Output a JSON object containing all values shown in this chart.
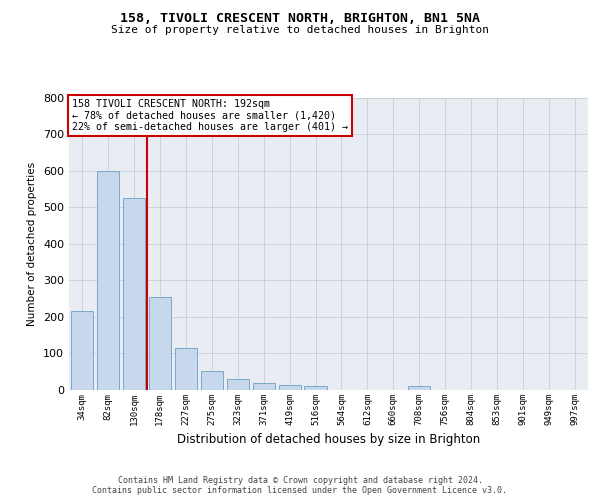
{
  "title1": "158, TIVOLI CRESCENT NORTH, BRIGHTON, BN1 5NA",
  "title2": "Size of property relative to detached houses in Brighton",
  "xlabel": "Distribution of detached houses by size in Brighton",
  "ylabel": "Number of detached properties",
  "categories": [
    "34sqm",
    "82sqm",
    "130sqm",
    "178sqm",
    "227sqm",
    "275sqm",
    "323sqm",
    "371sqm",
    "419sqm",
    "516sqm",
    "564sqm",
    "612sqm",
    "660sqm",
    "708sqm",
    "756sqm",
    "804sqm",
    "853sqm",
    "901sqm",
    "949sqm",
    "997sqm"
  ],
  "values": [
    215,
    598,
    525,
    255,
    115,
    52,
    30,
    18,
    14,
    10,
    0,
    0,
    0,
    10,
    0,
    0,
    0,
    0,
    0,
    0
  ],
  "bar_color": "#c8d8ec",
  "bar_edge_color": "#7aaac8",
  "grid_color": "#c8ccd8",
  "bg_color": "#eaecf4",
  "vline_color": "#cc0000",
  "vline_pos": 2.5,
  "annotation_text": "158 TIVOLI CRESCENT NORTH: 192sqm\n← 78% of detached houses are smaller (1,420)\n22% of semi-detached houses are larger (401) →",
  "annotation_box_color": "#cc0000",
  "footer": "Contains HM Land Registry data © Crown copyright and database right 2024.\nContains public sector information licensed under the Open Government Licence v3.0.",
  "ylim": [
    0,
    800
  ],
  "yticks": [
    0,
    100,
    200,
    300,
    400,
    500,
    600,
    700,
    800
  ]
}
